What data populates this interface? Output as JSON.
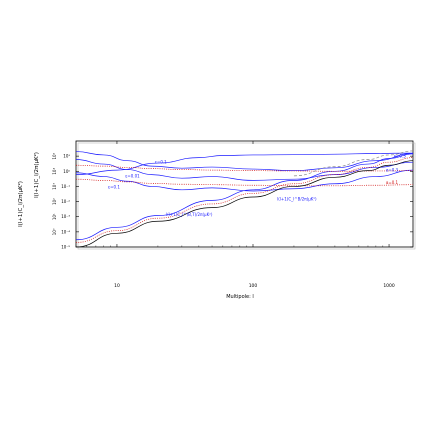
{
  "chart_data": {
    "type": "line",
    "title": "",
    "xlabel": "Multipole: l",
    "ylabel_outer": "l(l+1)C_l/2π(μK²)",
    "ylabel_inner": "l(l+1)C_l/2π(μK²)",
    "xscale": "log",
    "yscale": "log",
    "xlim": [
      5,
      1500
    ],
    "ylim_panel": [
      1e-05,
      100
    ],
    "x_ticks": [
      {
        "value": 10,
        "label": "10"
      },
      {
        "value": 100,
        "label": "100"
      },
      {
        "value": 1000,
        "label": "1000"
      }
    ],
    "y_ticks_outer": [
      {
        "value": 0.0001,
        "label": "10⁰"
      },
      {
        "value": 0.001,
        "label": "10¹"
      },
      {
        "value": 0.01,
        "label": "10²"
      },
      {
        "value": 0.1,
        "label": "10³"
      },
      {
        "value": 1,
        "label": "10⁴"
      },
      {
        "value": 10,
        "label": "10⁵"
      }
    ],
    "y_ticks_inner": [
      {
        "value": 1e-05,
        "label": "10⁻⁵"
      },
      {
        "value": 0.0001,
        "label": "10⁻⁴"
      },
      {
        "value": 0.001,
        "label": "10⁻³"
      },
      {
        "value": 0.01,
        "label": "10⁻²"
      },
      {
        "value": 0.1,
        "label": "10⁻¹"
      },
      {
        "value": 1,
        "label": "10⁰"
      },
      {
        "value": 10,
        "label": "10¹"
      }
    ],
    "annotations": [
      {
        "text": "ε=0.3",
        "x": 1200,
        "y": 8,
        "color": "#1a1aff"
      },
      {
        "text": "ε=0.1",
        "x": 21,
        "y": 3.2,
        "color": "#1a1aff"
      },
      {
        "text": "ε=0.01",
        "x": 13,
        "y": 0.4,
        "color": "#1a1aff"
      },
      {
        "text": "ε=0.1",
        "x": 9.5,
        "y": 0.075,
        "color": "#1a1aff"
      },
      {
        "text": "α=0.3",
        "x": 1050,
        "y": 1.0,
        "color": "#1a1aff"
      },
      {
        "text": "α=0.1",
        "x": 1050,
        "y": 0.15,
        "color": "#d01010"
      },
      {
        "text": "l(l+1)C_l^B/2π(μK²)",
        "x": 210,
        "y": 0.012,
        "color": "#1a1aff"
      },
      {
        "text": "l(l+1)C_l^(B,T)/2π(μK²)",
        "x": 34,
        "y": 0.0011,
        "color": "#1a1aff"
      }
    ],
    "series": [
      {
        "color": "#1a1aff",
        "dash": "solid",
        "x": [
          5,
          10,
          20,
          40,
          60,
          100,
          200,
          400,
          800,
          1500
        ],
        "y": [
          0.6,
          1.2,
          3.5,
          8,
          11,
          12,
          12.5,
          13.5,
          15,
          16
        ]
      },
      {
        "color": "#1a1aff",
        "dash": "solid",
        "x": [
          5,
          8,
          12,
          18,
          30,
          50,
          100,
          200,
          400,
          800,
          1500
        ],
        "y": [
          20,
          12,
          5,
          2.2,
          1.6,
          1.9,
          1.4,
          1.1,
          1.7,
          5,
          15
        ]
      },
      {
        "color": "#1a1aff",
        "dash": "solid",
        "x": [
          5,
          8,
          12,
          18,
          30,
          50,
          100,
          200,
          400,
          800,
          1500
        ],
        "y": [
          6,
          3,
          1.3,
          0.6,
          0.35,
          0.45,
          0.25,
          0.3,
          0.6,
          1.8,
          4
        ]
      },
      {
        "color": "#1a1aff",
        "dash": "solid",
        "x": [
          5,
          8,
          12,
          18,
          30,
          50,
          100,
          200,
          400,
          800,
          1500
        ],
        "y": [
          0.8,
          0.45,
          0.22,
          0.1,
          0.06,
          0.08,
          0.05,
          0.07,
          0.15,
          0.45,
          1.2
        ]
      },
      {
        "color": "#1a1aff",
        "dash": "solid",
        "x": [
          5,
          10,
          20,
          50,
          100,
          200,
          400,
          700,
          1000,
          1500
        ],
        "y": [
          3e-05,
          0.0002,
          0.0012,
          0.012,
          0.06,
          0.25,
          1.0,
          3,
          7,
          14
        ]
      },
      {
        "color": "#d01010",
        "dash": "dotted",
        "x": [
          5,
          8,
          12,
          18,
          30,
          50,
          100,
          200,
          400,
          800,
          1500
        ],
        "y": [
          2.5,
          2.2,
          1.8,
          1.5,
          1.3,
          1.2,
          1.1,
          1.05,
          1.0,
          1.05,
          1.1
        ]
      },
      {
        "color": "#d01010",
        "dash": "dotted",
        "x": [
          5,
          8,
          12,
          18,
          30,
          50,
          100,
          200,
          400,
          800,
          1500
        ],
        "y": [
          0.3,
          0.25,
          0.2,
          0.16,
          0.14,
          0.13,
          0.12,
          0.11,
          0.11,
          0.12,
          0.13
        ]
      },
      {
        "color": "#d01010",
        "dash": "dotted",
        "x": [
          5,
          10,
          20,
          50,
          100,
          200,
          400,
          700,
          1000,
          1500
        ],
        "y": [
          2e-05,
          0.00012,
          0.0008,
          0.007,
          0.035,
          0.15,
          0.6,
          1.8,
          4,
          8
        ]
      },
      {
        "color": "#000000",
        "dash": "solid",
        "x": [
          5,
          10,
          20,
          50,
          100,
          200,
          400,
          700,
          1000,
          1500
        ],
        "y": [
          1e-05,
          8e-05,
          0.0005,
          0.004,
          0.02,
          0.1,
          0.4,
          1.1,
          2.5,
          5
        ]
      },
      {
        "color": "#888888",
        "dash": "dashed",
        "x": [
          200,
          400,
          700,
          1000,
          1500
        ],
        "y": [
          0.5,
          2,
          6,
          12,
          22
        ]
      }
    ]
  }
}
